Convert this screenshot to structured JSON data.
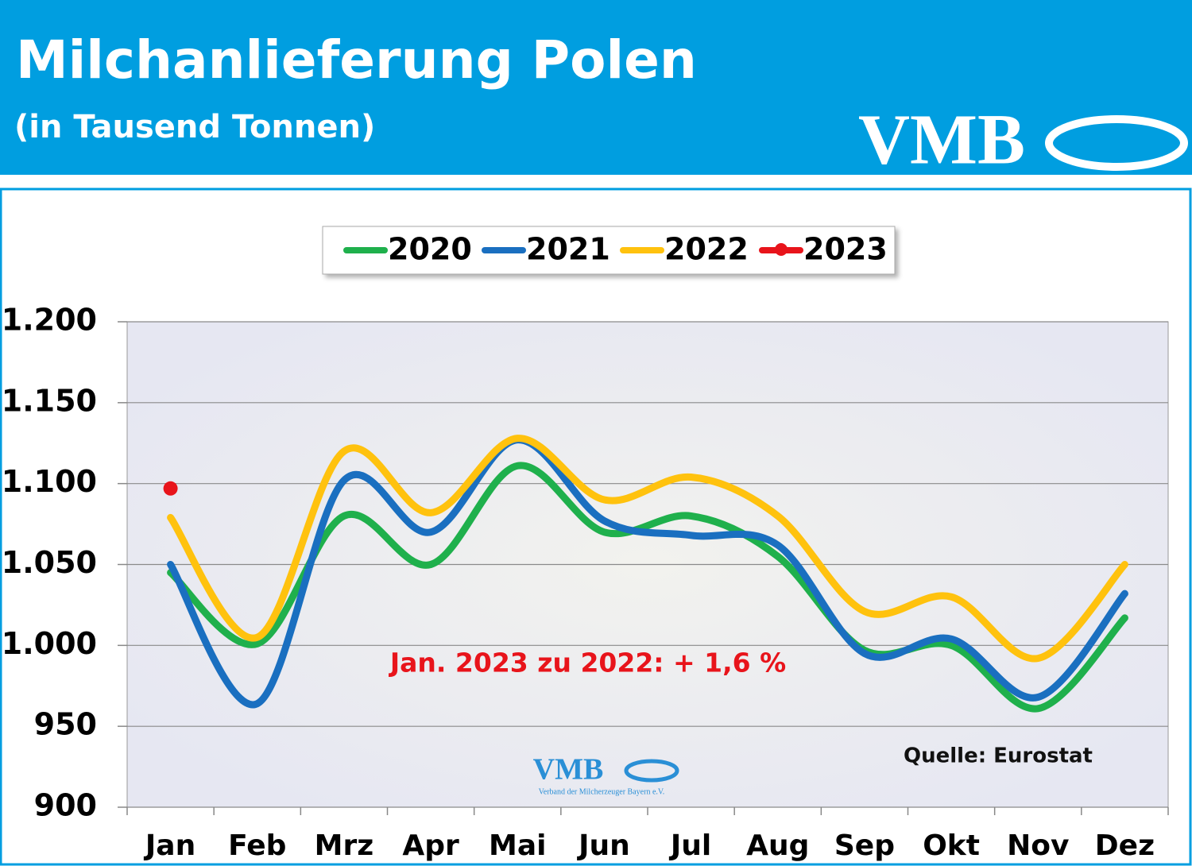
{
  "chart_data": {
    "type": "line",
    "title": "Milchanlieferung Polen",
    "subtitle": "(in Tausend Tonnen)",
    "logo": "VMB",
    "watermark": {
      "logo": "VMB",
      "text": "Verband der Milcherzeuger Bayern e.V."
    },
    "annotation": "Jan. 2023 zu 2022: + 1,6 %",
    "source": "Quelle: Eurostat",
    "categories": [
      "Jan",
      "Feb",
      "Mrz",
      "Apr",
      "Mai",
      "Jun",
      "Jul",
      "Aug",
      "Sep",
      "Okt",
      "Nov",
      "Dez"
    ],
    "series": [
      {
        "name": "2020",
        "color": "#1fb04c",
        "values": [
          1045,
          1001,
          1080,
          1050,
          1111,
          1070,
          1080,
          1055,
          997,
          1000,
          961,
          1017
        ]
      },
      {
        "name": "2021",
        "color": "#1a6fc0",
        "values": [
          1050,
          964,
          1102,
          1070,
          1127,
          1077,
          1068,
          1062,
          995,
          1004,
          968,
          1032
        ]
      },
      {
        "name": "2022",
        "color": "#ffc20e",
        "values": [
          1079,
          1005,
          1120,
          1082,
          1128,
          1090,
          1104,
          1080,
          1021,
          1030,
          992,
          1050
        ]
      },
      {
        "name": "2023",
        "color": "#e8141b",
        "values": [
          1097,
          null,
          null,
          null,
          null,
          null,
          null,
          null,
          null,
          null,
          null,
          null
        ]
      }
    ],
    "ylim": [
      900,
      1200
    ],
    "yticks": [
      900,
      950,
      {
        "value": 1000,
        "label": "1.000"
      },
      {
        "value": 1050,
        "label": "1.050"
      },
      {
        "value": 1100,
        "label": "1.100"
      },
      {
        "value": 1150,
        "label": "1.150"
      },
      {
        "value": 1200,
        "label": "1.200"
      }
    ],
    "grid": true,
    "legend": "top"
  }
}
